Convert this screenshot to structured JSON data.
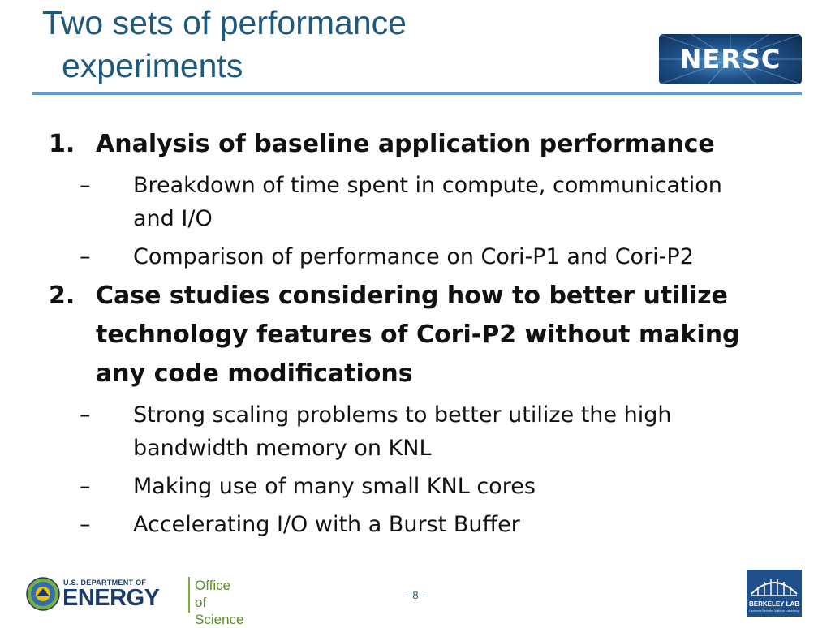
{
  "slide": {
    "title_line1": "Two sets of performance",
    "title_line2": "experiments",
    "page_number": "- 8 -"
  },
  "logos": {
    "nersc": "NERSC",
    "doe_department": "U.S. DEPARTMENT OF",
    "doe_energy": "ENERGY",
    "doe_office_line1": "Office of",
    "doe_office_line2": "Science",
    "berkeley": "BERKELEY LAB",
    "berkeley_sub": "Lawrence Berkeley National Laboratory"
  },
  "items": [
    {
      "num": "1.",
      "text": "Analysis of baseline application performance",
      "subs": [
        {
          "dash": "–",
          "text": "Breakdown of time spent in compute, communication and I/O"
        },
        {
          "dash": "–",
          "text": "Comparison of performance on Cori-P1 and Cori-P2"
        }
      ]
    },
    {
      "num": "2.",
      "text": "Case studies considering how to better utilize technology features of Cori-P2 without making any code modifications",
      "subs": [
        {
          "dash": "–",
          "text": "Strong scaling problems to better utilize the high bandwidth memory on KNL"
        },
        {
          "dash": "–",
          "text": "Making use of many small KNL cores"
        },
        {
          "dash": "–",
          "text": "Accelerating I/O with a Burst Buffer"
        }
      ]
    }
  ],
  "colors": {
    "title": "#1f5a7e",
    "rule": "#5b9bd5",
    "doe_green": "#7cae3c",
    "berkeley_blue": "#1e4f8a"
  }
}
